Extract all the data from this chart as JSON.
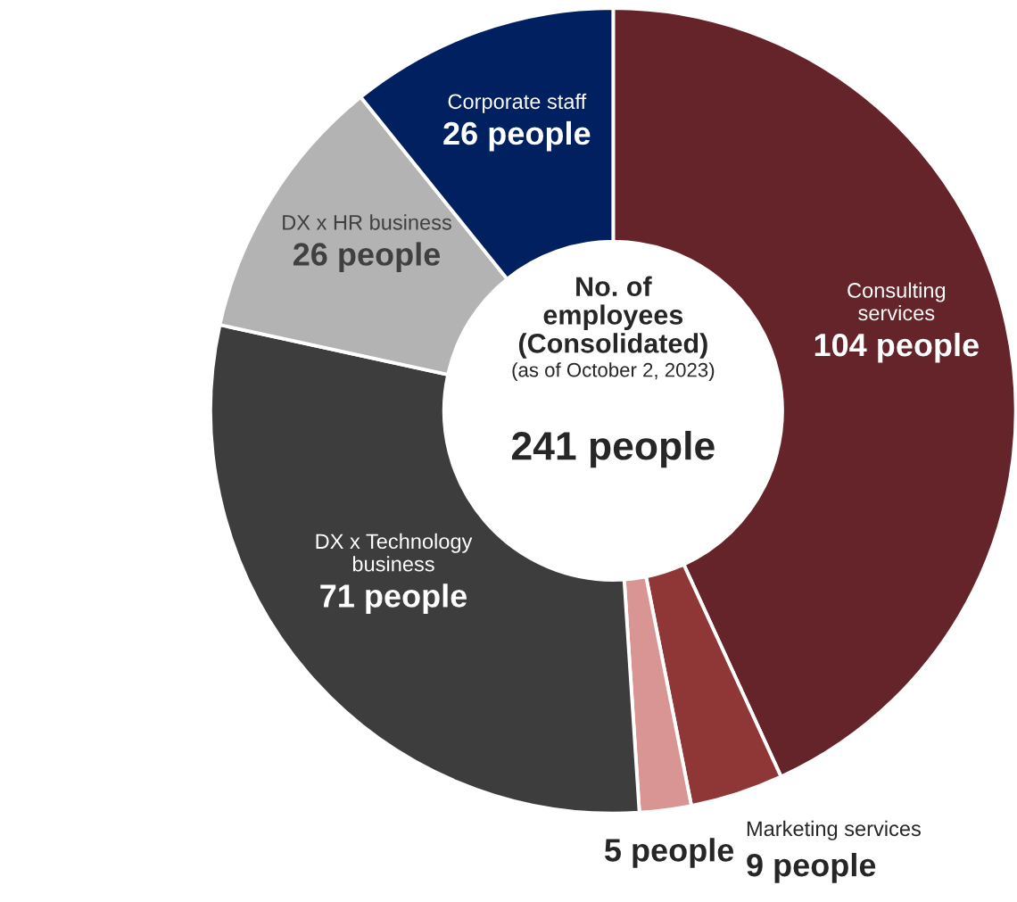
{
  "chart_data": {
    "type": "donut",
    "title": "No. of employees (Consolidated)",
    "subtitle": "(as of October 2, 2023)",
    "annotations": [
      "241 people"
    ],
    "categories": [
      "Consulting services",
      "Marketing services",
      null,
      "DX x Technology business",
      "DX x HR business",
      "Corporate staff"
    ],
    "values": [
      104,
      9,
      5,
      71,
      26,
      26
    ],
    "colors": [
      "#65232a",
      "#8f3636",
      "#d99594",
      "#3d3d3d",
      "#b3b3b3",
      "#002060"
    ],
    "value_labels": [
      "104 people",
      "9 people",
      "5 people",
      "71 people",
      "26 people",
      "26 people"
    ]
  }
}
